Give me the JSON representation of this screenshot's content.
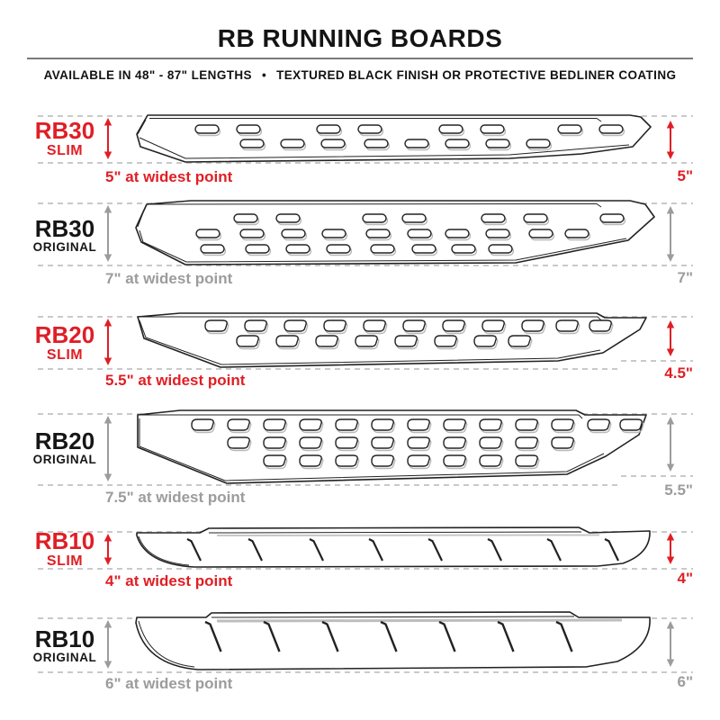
{
  "header": {
    "title": "RB RUNNING BOARDS",
    "availability": "AVAILABLE IN 48\" - 87\" LENGTHS",
    "separator": "•",
    "finish": "TEXTURED BLACK FINISH OR PROTECTIVE BEDLINER COATING"
  },
  "colors": {
    "accent_red": "#e01e25",
    "measure_gray": "#9c9c9c",
    "dash_gray": "#c9c9c9",
    "outline_ink": "#222222"
  },
  "rows": [
    {
      "model": "RB30",
      "variant": "SLIM",
      "widest_label": "5\" at widest point",
      "end_label": "5\""
    },
    {
      "model": "RB30",
      "variant": "ORIGINAL",
      "widest_label": "7\" at widest point",
      "end_label": "7\""
    },
    {
      "model": "RB20",
      "variant": "SLIM",
      "widest_label": "5.5\" at widest point",
      "end_label": "4.5\""
    },
    {
      "model": "RB20",
      "variant": "ORIGINAL",
      "widest_label": "7.5\" at widest point",
      "end_label": "5.5\""
    },
    {
      "model": "RB10",
      "variant": "SLIM",
      "widest_label": "4\" at widest point",
      "end_label": "4\""
    },
    {
      "model": "RB10",
      "variant": "ORIGINAL",
      "widest_label": "6\" at widest point",
      "end_label": "6\""
    }
  ]
}
